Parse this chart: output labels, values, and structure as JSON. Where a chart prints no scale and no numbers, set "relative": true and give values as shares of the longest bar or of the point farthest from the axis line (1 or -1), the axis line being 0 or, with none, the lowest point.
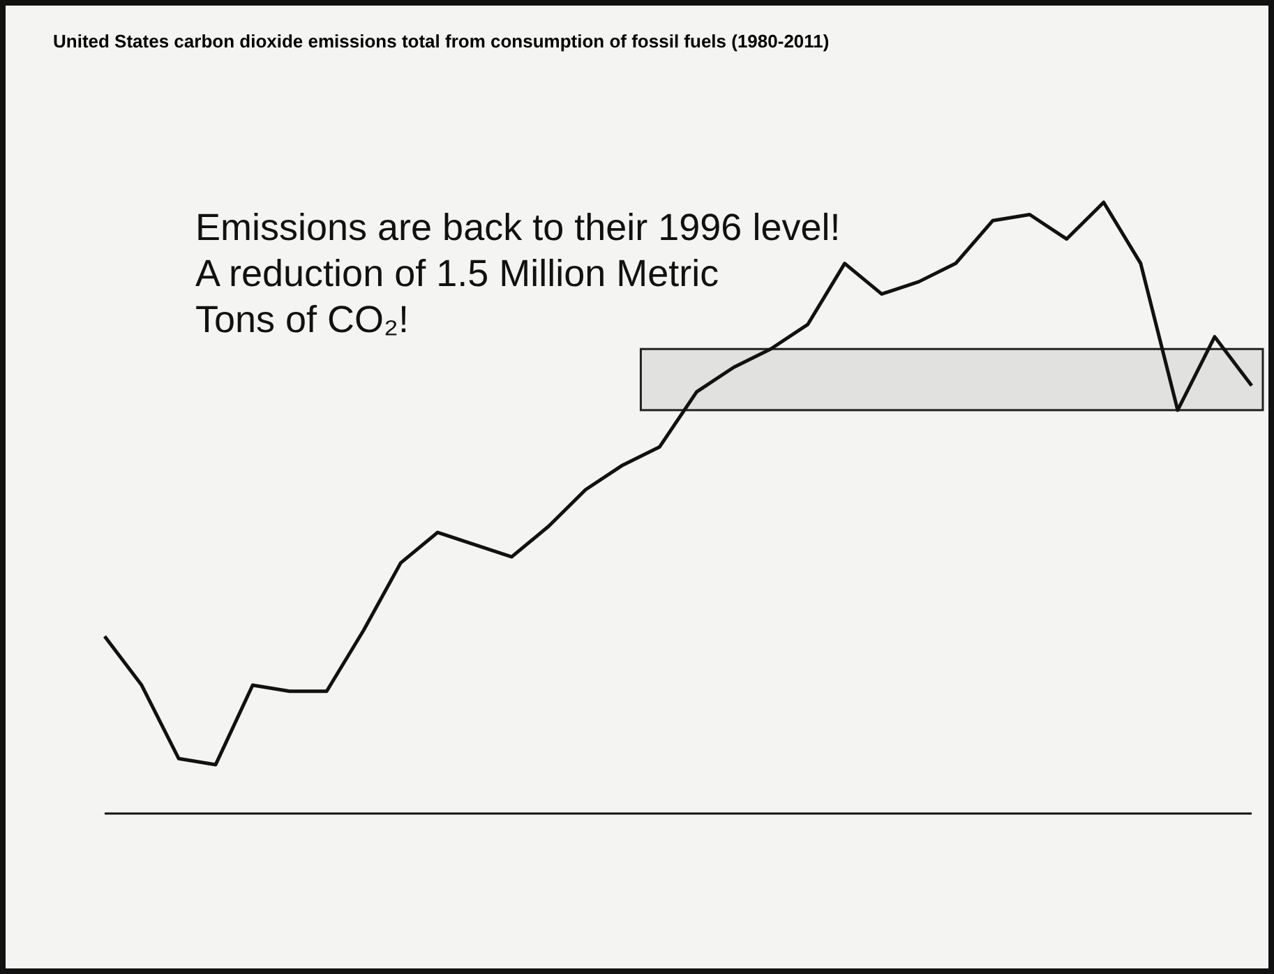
{
  "chart_data": {
    "type": "line",
    "title": "United States carbon dioxide emissions total from consumption of fossil fuels (1980-2011)",
    "relative": true,
    "categories": [
      null,
      null,
      null,
      null,
      null,
      null,
      null,
      null,
      null,
      null,
      null,
      null,
      null,
      null,
      null,
      null,
      null,
      null,
      null,
      null,
      null,
      null,
      null,
      null,
      null,
      null,
      null,
      null,
      null,
      null,
      null,
      null
    ],
    "series": [
      {
        "color": "#111111",
        "values": [
          0.29,
          0.21,
          0.09,
          0.08,
          0.21,
          0.2,
          0.2,
          0.3,
          0.41,
          0.46,
          0.44,
          0.42,
          0.47,
          0.53,
          0.57,
          0.6,
          0.69,
          0.73,
          0.76,
          0.8,
          0.9,
          0.85,
          0.87,
          0.9,
          0.97,
          0.98,
          0.94,
          1,
          0.9,
          0.66,
          0.78,
          0.7
        ]
      }
    ],
    "annotations": [
      "Emissions are back to their 1996 level!\nA reduction of 1.5 Million Metric\nTons of CO₂!"
    ],
    "marker": "none",
    "line_style": "solid"
  }
}
